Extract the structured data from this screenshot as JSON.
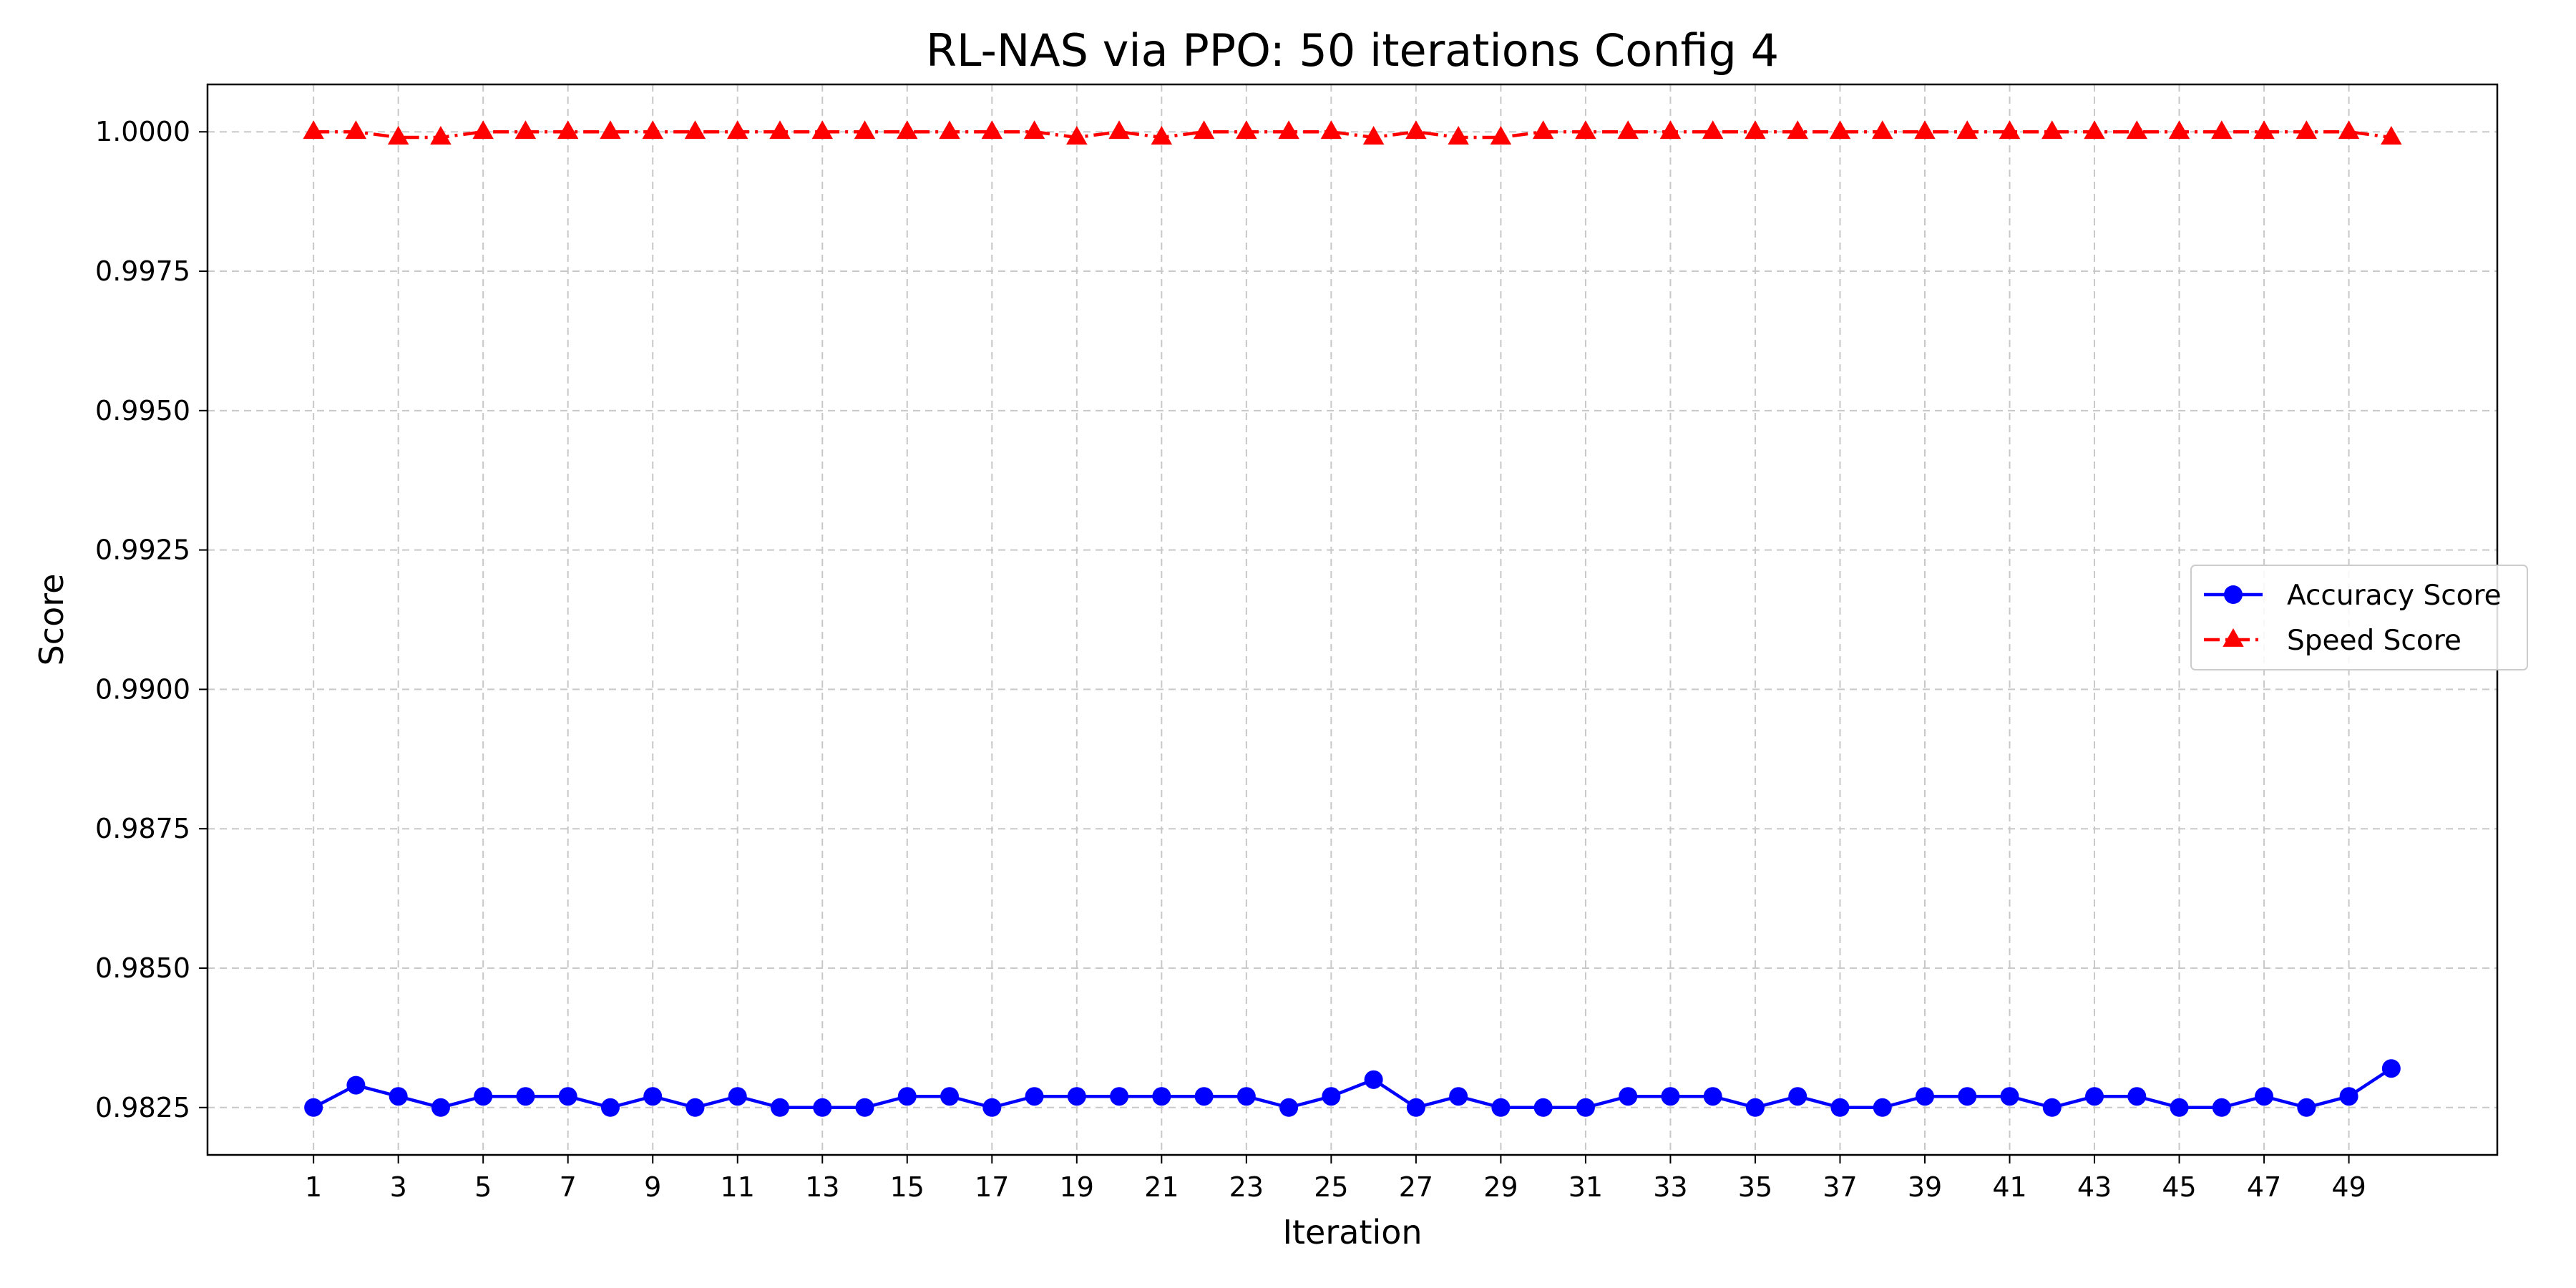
{
  "chart_data": {
    "type": "line",
    "title": "RL-NAS via PPO: 50 iterations Config 4",
    "xlabel": "Iteration",
    "ylabel": "Score",
    "xlim": [
      -1.5,
      52.5
    ],
    "ylim": [
      0.98165,
      1.00085
    ],
    "x_ticks": [
      1,
      3,
      5,
      7,
      9,
      11,
      13,
      15,
      17,
      19,
      21,
      23,
      25,
      27,
      29,
      31,
      33,
      35,
      37,
      39,
      41,
      43,
      45,
      47,
      49
    ],
    "y_ticks": [
      "0.9825",
      "0.9850",
      "0.9875",
      "0.9900",
      "0.9925",
      "0.9950",
      "0.9975",
      "1.0000"
    ],
    "grid": true,
    "legend_position": "center-right",
    "x": [
      1,
      2,
      3,
      4,
      5,
      6,
      7,
      8,
      9,
      10,
      11,
      12,
      13,
      14,
      15,
      16,
      17,
      18,
      19,
      20,
      21,
      22,
      23,
      24,
      25,
      26,
      27,
      28,
      29,
      30,
      31,
      32,
      33,
      34,
      35,
      36,
      37,
      38,
      39,
      40,
      41,
      42,
      43,
      44,
      45,
      46,
      47,
      48,
      49,
      50
    ],
    "series": [
      {
        "name": "Accuracy Score",
        "color": "#0000ff",
        "marker": "circle",
        "line_style": "solid",
        "values": [
          0.9825,
          0.9829,
          0.9827,
          0.9825,
          0.9827,
          0.9827,
          0.9827,
          0.9825,
          0.9827,
          0.9825,
          0.9827,
          0.9825,
          0.9825,
          0.9825,
          0.9827,
          0.9827,
          0.9825,
          0.9827,
          0.9827,
          0.9827,
          0.9827,
          0.9827,
          0.9827,
          0.9825,
          0.9827,
          0.983,
          0.9825,
          0.9827,
          0.9825,
          0.9825,
          0.9825,
          0.9827,
          0.9827,
          0.9827,
          0.9825,
          0.9827,
          0.9825,
          0.9825,
          0.9827,
          0.9827,
          0.9827,
          0.9825,
          0.9827,
          0.9827,
          0.9825,
          0.9825,
          0.9827,
          0.9825,
          0.9827,
          0.9832
        ]
      },
      {
        "name": "Speed Score",
        "color": "#ff0000",
        "marker": "triangle",
        "line_style": "dashdot",
        "values": [
          1.0,
          1.0,
          0.9999,
          0.9999,
          1.0,
          1.0,
          1.0,
          1.0,
          1.0,
          1.0,
          1.0,
          1.0,
          1.0,
          1.0,
          1.0,
          1.0,
          1.0,
          1.0,
          0.9999,
          1.0,
          0.9999,
          1.0,
          1.0,
          1.0,
          1.0,
          0.9999,
          1.0,
          0.9999,
          0.9999,
          1.0,
          1.0,
          1.0,
          1.0,
          1.0,
          1.0,
          1.0,
          1.0,
          1.0,
          1.0,
          1.0,
          1.0,
          1.0,
          1.0,
          1.0,
          1.0,
          1.0,
          1.0,
          1.0,
          1.0,
          0.9999
        ]
      }
    ]
  }
}
